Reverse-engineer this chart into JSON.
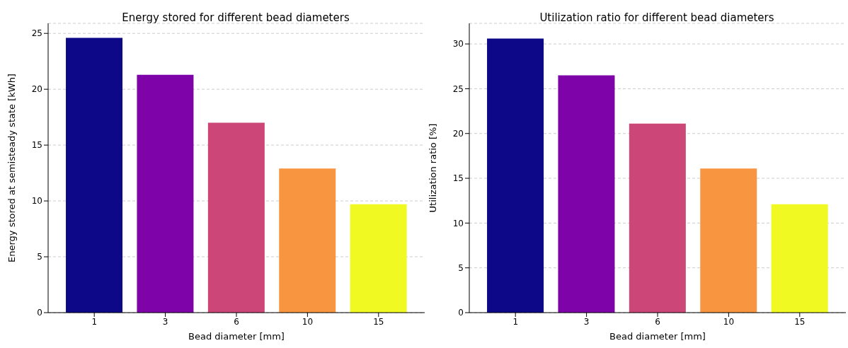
{
  "chart_data": [
    {
      "type": "bar",
      "title": "Energy stored for different bead diameters",
      "xlabel": "Bead diameter [mm]",
      "ylabel": "Energy stored at semisteady state [kWh]",
      "categories": [
        "1",
        "3",
        "6",
        "10",
        "15"
      ],
      "values": [
        24.6,
        21.3,
        17.0,
        12.9,
        9.7
      ],
      "colors": [
        "#0d0887",
        "#7e03a8",
        "#cc4778",
        "#f89540",
        "#f0f921"
      ],
      "ylim": [
        0,
        25.9
      ],
      "yticks": [
        0,
        5,
        10,
        15,
        20,
        25
      ],
      "grid": "y"
    },
    {
      "type": "bar",
      "title": "Utilization ratio for different bead diameters",
      "xlabel": "Bead diameter [mm]",
      "ylabel": "Utilization ratio [%]",
      "categories": [
        "1",
        "3",
        "6",
        "10",
        "15"
      ],
      "values": [
        30.6,
        26.5,
        21.1,
        16.1,
        12.1
      ],
      "colors": [
        "#0d0887",
        "#7e03a8",
        "#cc4778",
        "#f89540",
        "#f0f921"
      ],
      "ylim": [
        0,
        32.3
      ],
      "yticks": [
        0,
        5,
        10,
        15,
        20,
        25,
        30
      ],
      "grid": "y"
    }
  ]
}
